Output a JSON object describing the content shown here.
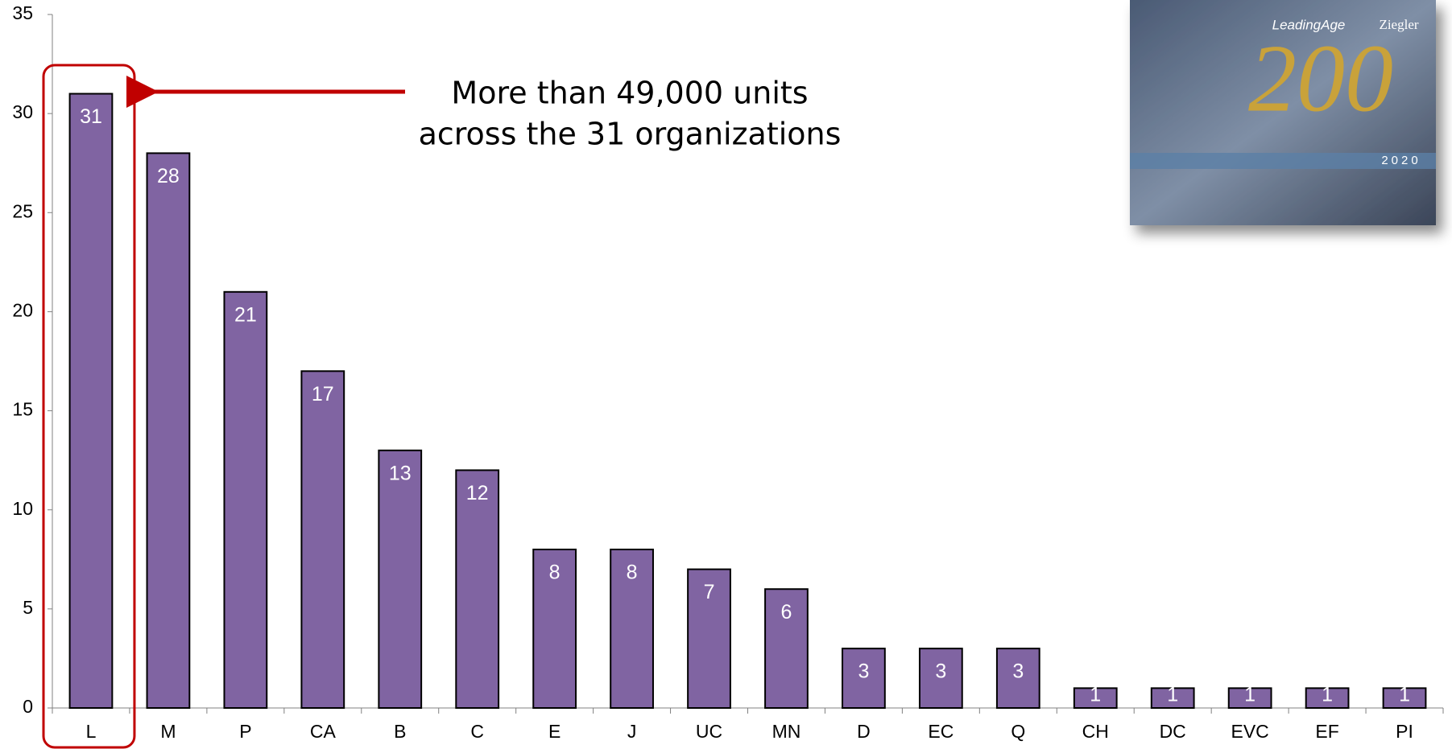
{
  "chart_data": {
    "type": "bar",
    "categories": [
      "L",
      "M",
      "P",
      "CA",
      "B",
      "C",
      "E",
      "J",
      "UC",
      "MN",
      "D",
      "EC",
      "Q",
      "CH",
      "DC",
      "EVC",
      "EF",
      "PI"
    ],
    "values": [
      31,
      28,
      21,
      17,
      13,
      12,
      8,
      8,
      7,
      6,
      3,
      3,
      3,
      1,
      1,
      1,
      1,
      1
    ],
    "color": "#8064a2",
    "ylim": [
      0,
      35
    ],
    "yticks": [
      0,
      5,
      10,
      15,
      20,
      25,
      30,
      35
    ],
    "annotation": [
      "More than 49,000 units",
      "across the 31 organizations"
    ],
    "highlight_color": "#c00000"
  },
  "cover_image": {
    "brand": "LeadingAge",
    "partner": "Ziegler",
    "headline": "200",
    "year": "2020"
  }
}
